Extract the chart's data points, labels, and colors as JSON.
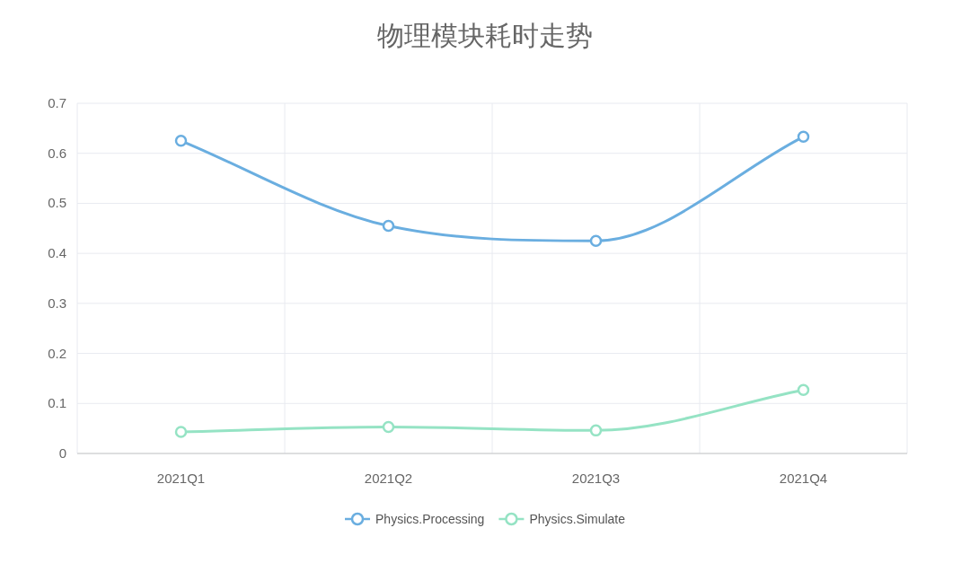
{
  "chart_data": {
    "type": "line",
    "title": "物理模块耗时走势",
    "categories": [
      "2021Q1",
      "2021Q2",
      "2021Q3",
      "2021Q4"
    ],
    "series": [
      {
        "name": "Physics.Processing",
        "color": "#6aaee0",
        "values": [
          0.625,
          0.455,
          0.425,
          0.633
        ]
      },
      {
        "name": "Physics.Simulate",
        "color": "#95e3c4",
        "values": [
          0.043,
          0.053,
          0.046,
          0.127
        ]
      }
    ],
    "ylim": [
      0,
      0.7
    ],
    "yticks": [
      0,
      0.1,
      0.2,
      0.3,
      0.4,
      0.5,
      0.6,
      0.7
    ],
    "grid": true,
    "legend": "bottom",
    "marker": "circle",
    "line_style": "solid"
  }
}
